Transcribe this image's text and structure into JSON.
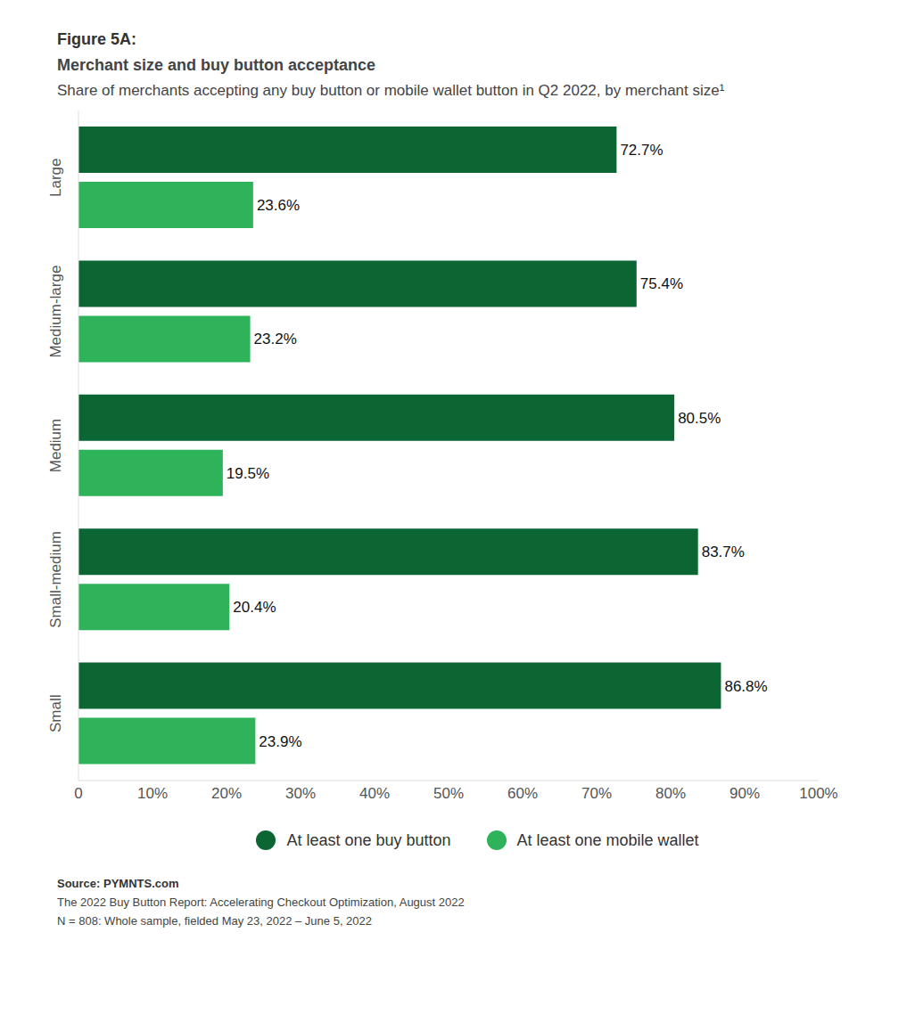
{
  "chart_data": {
    "type": "bar",
    "orientation": "horizontal",
    "title": "Figure 5A:",
    "subtitle": "Merchant size and buy button acceptance",
    "caption": "Share of merchants accepting any buy button or mobile wallet button in Q2 2022, by merchant size¹",
    "categories": [
      "Large",
      "Medium-large",
      "Medium",
      "Small-medium",
      "Small"
    ],
    "series": [
      {
        "name": "At least one buy button",
        "color": "#0b6634",
        "values": [
          72.7,
          75.4,
          80.5,
          83.7,
          86.8
        ],
        "value_labels": [
          "72.7%",
          "75.4%",
          "80.5%",
          "83.7%",
          "86.8%"
        ]
      },
      {
        "name": "At least one mobile wallet",
        "color": "#2eb35b",
        "values": [
          23.6,
          23.2,
          19.5,
          20.4,
          23.9
        ],
        "value_labels": [
          "23.6%",
          "23.2%",
          "19.5%",
          "20.4%",
          "23.9%"
        ]
      }
    ],
    "xlim": [
      0,
      100
    ],
    "xticks": [
      0,
      {
        "value": 10,
        "label": "10%"
      },
      {
        "value": 20,
        "label": "20%"
      },
      {
        "value": 30,
        "label": "30%"
      },
      {
        "value": 40,
        "label": "40%"
      },
      {
        "value": 50,
        "label": "50%"
      },
      {
        "value": 60,
        "label": "60%"
      },
      {
        "value": 70,
        "label": "70%"
      },
      {
        "value": 80,
        "label": "80%"
      },
      {
        "value": 90,
        "label": "90%"
      },
      {
        "value": 100,
        "label": "100%"
      }
    ],
    "data_labels": true,
    "legend": "bottom",
    "grid": false,
    "source": "Source: PYMNTS.com",
    "notes": [
      "The 2022 Buy Button Report: Accelerating Checkout Optimization, August 2022",
      "N = 808: Whole sample, fielded May 23, 2022 – June 5, 2022"
    ]
  }
}
